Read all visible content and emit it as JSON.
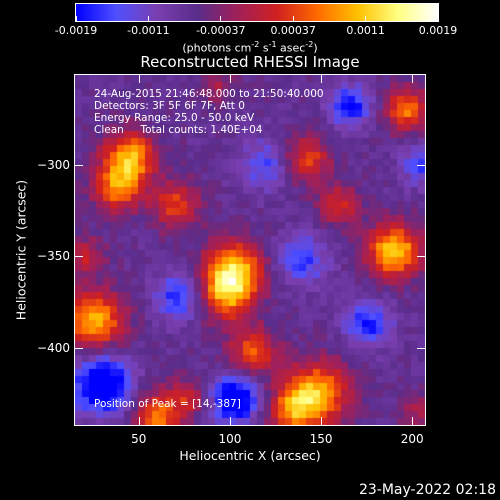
{
  "colorbar": {
    "tick_labels": [
      "-0.0019",
      "-0.0011",
      "-0.00037",
      "0.00037",
      "0.0011",
      "0.0019"
    ],
    "unit_label_parts": [
      "(photons cm",
      "-2",
      " s",
      "-1",
      " asec",
      "-2",
      ")"
    ]
  },
  "chart_data": {
    "type": "heatmap",
    "title": "Reconstructed RHESSI Image",
    "xlabel": "Heliocentric X (arcsec)",
    "ylabel": "Heliocentric Y (arcsec)",
    "xlim": [
      15,
      207
    ],
    "ylim": [
      -442,
      -251
    ],
    "x_ticks": [
      50,
      100,
      150,
      200
    ],
    "y_ticks": [
      -300,
      -350,
      -400
    ],
    "colormap": [
      "#0000ff",
      "#5050ff",
      "#7a3fb0",
      "#5a2d8c",
      "#a0205a",
      "#d02020",
      "#ff6a00",
      "#ffc000",
      "#ffff80",
      "#ffffff"
    ],
    "color_range": [
      -0.0019,
      0.0019
    ],
    "sources": [
      {
        "x": 45,
        "y": -296,
        "amp": 0.0017,
        "sigma": 10
      },
      {
        "x": 38,
        "y": -313,
        "amp": 0.0013,
        "sigma": 9
      },
      {
        "x": 70,
        "y": -322,
        "amp": 0.0011,
        "sigma": 9
      },
      {
        "x": 102,
        "y": -358,
        "amp": 0.0019,
        "sigma": 11
      },
      {
        "x": 98,
        "y": -372,
        "amp": 0.0012,
        "sigma": 10
      },
      {
        "x": 113,
        "y": -402,
        "amp": 0.0012,
        "sigma": 9
      },
      {
        "x": 26,
        "y": -385,
        "amp": 0.0017,
        "sigma": 11
      },
      {
        "x": 21,
        "y": -350,
        "amp": 0.0008,
        "sigma": 7
      },
      {
        "x": 142,
        "y": -297,
        "amp": 0.0011,
        "sigma": 9
      },
      {
        "x": 160,
        "y": -322,
        "amp": 0.0009,
        "sigma": 8
      },
      {
        "x": 190,
        "y": -347,
        "amp": 0.0019,
        "sigma": 10
      },
      {
        "x": 197,
        "y": -270,
        "amp": 0.0014,
        "sigma": 8
      },
      {
        "x": 148,
        "y": -425,
        "amp": 0.0017,
        "sigma": 12
      },
      {
        "x": 134,
        "y": -434,
        "amp": 0.0012,
        "sigma": 9
      },
      {
        "x": 60,
        "y": -437,
        "amp": 0.0014,
        "sigma": 9
      },
      {
        "x": 77,
        "y": -427,
        "amp": 0.0008,
        "sigma": 7
      },
      {
        "x": 93,
        "y": -257,
        "amp": 0.0006,
        "sigma": 6
      },
      {
        "x": 204,
        "y": -436,
        "amp": 0.0006,
        "sigma": 7
      },
      {
        "x": 30,
        "y": -420,
        "amp": -0.0018,
        "sigma": 11
      },
      {
        "x": 103,
        "y": -428,
        "amp": -0.0017,
        "sigma": 9
      },
      {
        "x": 166,
        "y": -268,
        "amp": -0.0012,
        "sigma": 8
      },
      {
        "x": 72,
        "y": -372,
        "amp": -0.0011,
        "sigma": 9
      },
      {
        "x": 176,
        "y": -387,
        "amp": -0.0011,
        "sigma": 9
      },
      {
        "x": 140,
        "y": -352,
        "amp": -0.0009,
        "sigma": 10
      },
      {
        "x": 120,
        "y": -300,
        "amp": -0.0008,
        "sigma": 10
      },
      {
        "x": 205,
        "y": -300,
        "amp": -0.0009,
        "sigma": 8
      }
    ],
    "baseline": -0.0007
  },
  "info": {
    "lines": [
      "24-Aug-2015 21:46:48.000 to 21:50:40.000",
      "Detectors: 3F 5F 6F 7F, Att 0",
      "Energy Range: 25.0 - 50.0 keV",
      "Clean     Total counts: 1.40E+04"
    ],
    "peak": "Position of Peak = [14,-387]"
  },
  "timestamp": "23-May-2022 02:18"
}
